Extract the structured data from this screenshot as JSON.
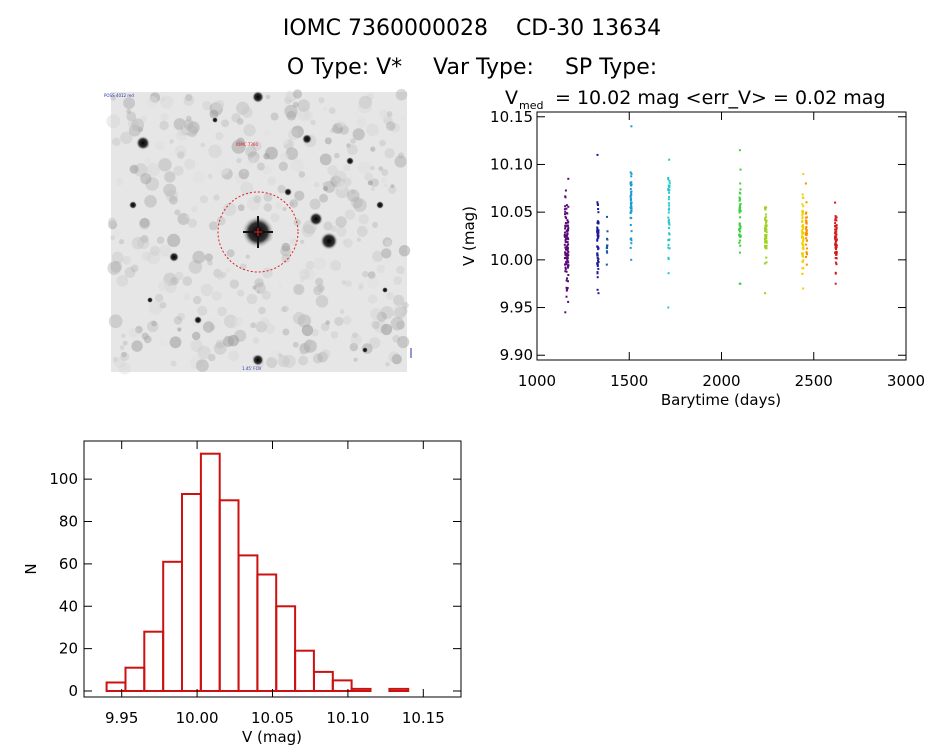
{
  "header": {
    "object_id": "IOMC 7360000028",
    "object_name": "CD-30 13634",
    "otype_label": "O Type: V*",
    "vartype_label": "Var Type:",
    "sptype_label": "SP Type:"
  },
  "image_panel": {
    "label_top_left": "POSS 4012 red",
    "label_mid": "IOMC 7360",
    "label_bottom": "1.45' FOV"
  },
  "chart_data": [
    {
      "type": "scatter",
      "title_main": "V",
      "title_sub": "med",
      "title_rest": "= 10.02 mag <err_V> = 0.02 mag",
      "xlabel": "Barytime (days)",
      "ylabel": "V (mag)",
      "xlim": [
        1000,
        3000
      ],
      "ylim": [
        10.155,
        9.895
      ],
      "y_inverted": true,
      "x_ticks": [
        "1000",
        "1500",
        "2000",
        "2500",
        "3000"
      ],
      "y_ticks": [
        "9.90",
        "9.95",
        "10.00",
        "10.05",
        "10.10",
        "10.15"
      ],
      "series": [
        {
          "color": "#5a0a78",
          "x_center": 1160,
          "x_spread": 20,
          "y_min": 9.945,
          "y_max": 10.085,
          "y_med": 10.01,
          "n": 110
        },
        {
          "color": "#1a1a9a",
          "x_center": 1330,
          "x_spread": 8,
          "y_min": 9.965,
          "y_max": 10.11,
          "y_med": 10.02,
          "n": 55
        },
        {
          "color": "#145a9a",
          "x_center": 1380,
          "x_spread": 4,
          "y_min": 9.995,
          "y_max": 10.045,
          "y_med": 10.02,
          "n": 12
        },
        {
          "color": "#1a9ad8",
          "x_center": 1510,
          "x_spread": 6,
          "y_min": 10.0,
          "y_max": 10.14,
          "y_med": 10.05,
          "n": 45
        },
        {
          "color": "#28c8c8",
          "x_center": 1715,
          "x_spread": 8,
          "y_min": 9.95,
          "y_max": 10.105,
          "y_med": 10.05,
          "n": 40
        },
        {
          "color": "#3ad23a",
          "x_center": 2100,
          "x_spread": 8,
          "y_min": 9.975,
          "y_max": 10.115,
          "y_med": 10.04,
          "n": 45
        },
        {
          "color": "#9ad21a",
          "x_center": 2240,
          "x_spread": 10,
          "y_min": 9.965,
          "y_max": 10.055,
          "y_med": 10.025,
          "n": 50
        },
        {
          "color": "#f0d200",
          "x_center": 2440,
          "x_spread": 8,
          "y_min": 9.97,
          "y_max": 10.09,
          "y_med": 10.03,
          "n": 60
        },
        {
          "color": "#ff8c00",
          "x_center": 2460,
          "x_spread": 6,
          "y_min": 9.995,
          "y_max": 10.08,
          "y_med": 10.03,
          "n": 40
        },
        {
          "color": "#d81a1a",
          "x_center": 2620,
          "x_spread": 10,
          "y_min": 9.975,
          "y_max": 10.06,
          "y_med": 10.02,
          "n": 70
        }
      ]
    },
    {
      "type": "bar",
      "xlabel": "V (mag)",
      "ylabel": "N",
      "xlim": [
        9.925,
        10.175
      ],
      "ylim": [
        0,
        118
      ],
      "bar_color": "#cc1111",
      "bin_width": 0.0125,
      "bin_starts": [
        9.94,
        9.9525,
        9.965,
        9.9775,
        9.99,
        10.0025,
        10.015,
        10.0275,
        10.04,
        10.0525,
        10.065,
        10.0775,
        10.09,
        10.1025,
        10.115,
        10.1275
      ],
      "values": [
        4,
        11,
        28,
        61,
        93,
        112,
        90,
        64,
        55,
        40,
        19,
        9,
        5,
        1,
        0,
        1
      ],
      "x_ticks": [
        "9.95",
        "10.00",
        "10.05",
        "10.10",
        "10.15"
      ],
      "y_ticks": [
        "0",
        "20",
        "40",
        "60",
        "80",
        "100"
      ]
    }
  ]
}
